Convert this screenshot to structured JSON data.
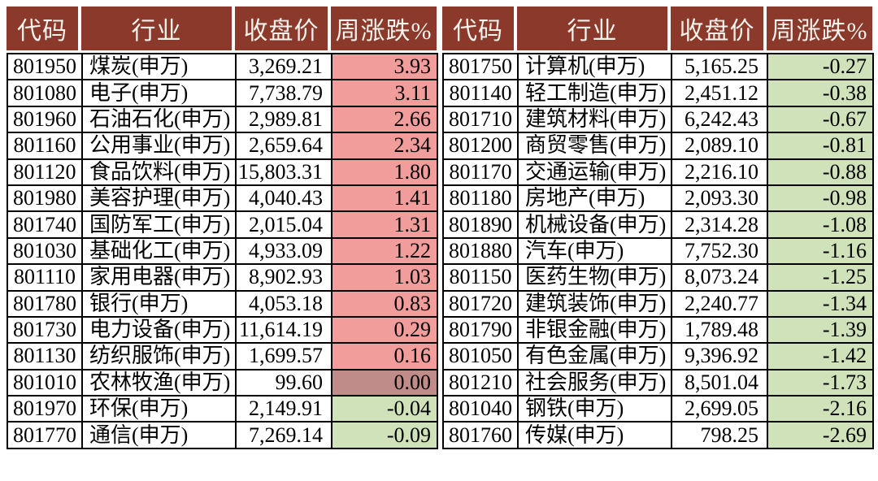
{
  "chart_data": {
    "type": "table",
    "columns": [
      "代码",
      "行业",
      "收盘价",
      "周涨跌%"
    ],
    "tables": [
      {
        "rows": [
          [
            "801950",
            "煤炭(申万)",
            "3,269.21",
            "3.93"
          ],
          [
            "801080",
            "电子(申万)",
            "7,738.79",
            "3.11"
          ],
          [
            "801960",
            "石油石化(申万)",
            "2,989.81",
            "2.66"
          ],
          [
            "801160",
            "公用事业(申万)",
            "2,659.64",
            "2.34"
          ],
          [
            "801120",
            "食品饮料(申万)",
            "15,803.31",
            "1.80"
          ],
          [
            "801980",
            "美容护理(申万)",
            "4,040.43",
            "1.41"
          ],
          [
            "801740",
            "国防军工(申万)",
            "2,015.04",
            "1.31"
          ],
          [
            "801030",
            "基础化工(申万)",
            "4,933.09",
            "1.22"
          ],
          [
            "801110",
            "家用电器(申万)",
            "8,902.93",
            "1.03"
          ],
          [
            "801780",
            "银行(申万)",
            "4,053.18",
            "0.83"
          ],
          [
            "801730",
            "电力设备(申万)",
            "11,614.19",
            "0.29"
          ],
          [
            "801130",
            "纺织服饰(申万)",
            "1,699.57",
            "0.16"
          ],
          [
            "801010",
            "农林牧渔(申万)",
            "99.60",
            "0.00"
          ],
          [
            "801970",
            "环保(申万)",
            "2,149.91",
            "-0.04"
          ],
          [
            "801770",
            "通信(申万)",
            "7,269.14",
            "-0.09"
          ]
        ]
      },
      {
        "rows": [
          [
            "801750",
            "计算机(申万)",
            "5,165.25",
            "-0.27"
          ],
          [
            "801140",
            "轻工制造(申万)",
            "2,451.12",
            "-0.38"
          ],
          [
            "801710",
            "建筑材料(申万)",
            "6,242.43",
            "-0.67"
          ],
          [
            "801200",
            "商贸零售(申万)",
            "2,089.10",
            "-0.81"
          ],
          [
            "801170",
            "交通运输(申万)",
            "2,216.10",
            "-0.88"
          ],
          [
            "801180",
            "房地产(申万)",
            "2,093.30",
            "-0.98"
          ],
          [
            "801890",
            "机械设备(申万)",
            "2,314.28",
            "-1.08"
          ],
          [
            "801880",
            "汽车(申万)",
            "7,752.30",
            "-1.16"
          ],
          [
            "801150",
            "医药生物(申万)",
            "8,073.24",
            "-1.25"
          ],
          [
            "801720",
            "建筑装饰(申万)",
            "2,240.77",
            "-1.34"
          ],
          [
            "801790",
            "非银金融(申万)",
            "1,789.48",
            "-1.39"
          ],
          [
            "801050",
            "有色金属(申万)",
            "9,396.92",
            "-1.42"
          ],
          [
            "801210",
            "社会服务(申万)",
            "8,501.04",
            "-1.73"
          ],
          [
            "801040",
            "钢铁(申万)",
            "2,699.05",
            "-2.16"
          ],
          [
            "801760",
            "传媒(申万)",
            "798.25",
            "-2.69"
          ]
        ]
      }
    ]
  },
  "colors": {
    "header_bg": "#8a392b",
    "header_text": "#f7f2ec",
    "positive_bg": "#f09d9c",
    "zero_bg": "#c08c89",
    "negative_bg": "#cfe2ba",
    "border": "#000000",
    "page_bg": "#ffffff"
  }
}
